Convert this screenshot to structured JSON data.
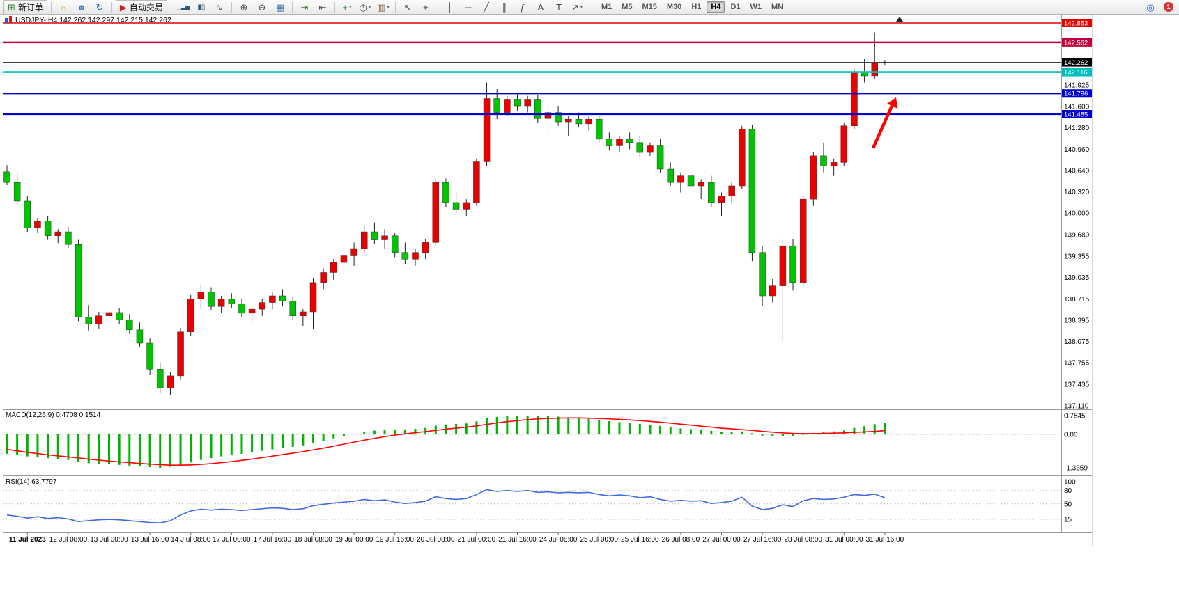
{
  "toolbar": {
    "items": [
      {
        "name": "new-order-button",
        "button": true,
        "icon_name": "new-order-icon",
        "glyph": "⊞",
        "color": "#2a7f2a",
        "label": "新订单"
      },
      {
        "sep": true
      },
      {
        "name": "chart-wizard-icon",
        "glyph": "☼",
        "color": "#dd9900"
      },
      {
        "name": "community-icon",
        "glyph": "☻",
        "color": "#4a7ab5"
      },
      {
        "name": "refresh-icon",
        "glyph": "↻",
        "color": "#3a6ea5"
      },
      {
        "sep": true
      },
      {
        "name": "autotrading-button",
        "button": true,
        "icon_name": "autotrading-icon",
        "glyph": "▶",
        "color": "#cc2020",
        "label": "自动交易"
      },
      {
        "sep": true
      },
      {
        "name": "bar-chart-icon",
        "glyph": "▁▃▅",
        "color": "#33536e",
        "size": 8
      },
      {
        "name": "candlestick-chart-icon",
        "glyph": "▮▯",
        "color": "#33536e",
        "size": 10
      },
      {
        "name": "line-chart-icon",
        "glyph": "∿",
        "color": "#33536e"
      },
      {
        "sep": true
      },
      {
        "name": "zoom-in-icon",
        "glyph": "⊕"
      },
      {
        "name": "zoom-out-icon",
        "glyph": "⊖"
      },
      {
        "name": "tile-windows-icon",
        "glyph": "▦",
        "color": "#3a6ea5"
      },
      {
        "sep": true
      },
      {
        "name": "auto-scroll-icon",
        "glyph": "⇥",
        "color": "#2a7f2a"
      },
      {
        "name": "chart-shift-icon",
        "glyph": "⇤"
      },
      {
        "sep": true
      },
      {
        "name": "indicators-icon",
        "glyph": "+",
        "color": "#2a7f2a",
        "caret": true
      },
      {
        "name": "periods-icon",
        "glyph": "◷",
        "caret": true
      },
      {
        "name": "templates-icon",
        "glyph": "▥",
        "color": "#8a6d3b",
        "caret": true
      },
      {
        "sep": true
      },
      {
        "name": "cursor-icon",
        "glyph": "↖"
      },
      {
        "name": "crosshair-icon",
        "glyph": "⌖"
      },
      {
        "sep": true
      },
      {
        "name": "vertical-line-icon",
        "glyph": "│"
      },
      {
        "name": "horizontal-line-icon",
        "glyph": "─"
      },
      {
        "name": "trendline-icon",
        "glyph": "╱"
      },
      {
        "name": "channel-icon",
        "glyph": "∥"
      },
      {
        "name": "fibonacci-icon",
        "glyph": "ƒ"
      },
      {
        "name": "text-icon",
        "glyph": "A"
      },
      {
        "name": "label-icon",
        "glyph": "T"
      },
      {
        "name": "arrows-icon",
        "glyph": "↗",
        "caret": true
      },
      {
        "sep": true
      }
    ],
    "timeframes": [
      "M1",
      "M5",
      "M15",
      "M30",
      "H1",
      "H4",
      "D1",
      "W1",
      "MN"
    ],
    "active_timeframe": "H4",
    "right_items": [
      {
        "name": "search-icon",
        "glyph": "◎",
        "color": "#2a62c9"
      }
    ],
    "notification_count": "1"
  },
  "chart": {
    "title": "USDJPY-.H4 142.262 142.297 142.215 142.262",
    "symbol": "USDJPY-",
    "period": "H4"
  },
  "indicators": {
    "macd": {
      "text": "MACD(12,26,9) 0.4708 0.1514",
      "scale": [
        "0.7545",
        "0.00",
        "-1.3359"
      ]
    },
    "rsi": {
      "text": "RSI(14) 63.7797",
      "levels": [
        "100",
        "80",
        "50",
        "15"
      ]
    }
  },
  "price_axis": {
    "values": [
      141.925,
      141.6,
      141.28,
      140.96,
      140.64,
      140.32,
      140.0,
      139.68,
      139.355,
      139.035,
      138.715,
      138.395,
      138.075,
      137.755,
      137.435,
      137.11
    ]
  },
  "chart_data": {
    "type": "candlestick",
    "title": "USDJPY- H4",
    "colors": {
      "up": "#eb0000",
      "down": "#00c400",
      "wick": "#222222",
      "macd_hist": "#00b400",
      "macd_signal": "#ff0000",
      "rsi_line": "#4169e1"
    },
    "candles": [
      [
        140.62,
        140.72,
        140.42,
        140.46
      ],
      [
        140.46,
        140.6,
        140.12,
        140.18
      ],
      [
        140.18,
        140.26,
        139.72,
        139.78
      ],
      [
        139.78,
        139.93,
        139.7,
        139.88
      ],
      [
        139.88,
        139.96,
        139.6,
        139.66
      ],
      [
        139.66,
        139.76,
        139.55,
        139.72
      ],
      [
        139.72,
        139.79,
        139.48,
        139.53
      ],
      [
        139.53,
        139.6,
        138.38,
        138.44
      ],
      [
        138.44,
        138.62,
        138.24,
        138.34
      ],
      [
        138.34,
        138.52,
        138.27,
        138.46
      ],
      [
        138.46,
        138.56,
        138.3,
        138.51
      ],
      [
        138.51,
        138.58,
        138.34,
        138.4
      ],
      [
        138.4,
        138.49,
        138.19,
        138.25
      ],
      [
        138.25,
        138.36,
        137.99,
        138.05
      ],
      [
        138.05,
        138.13,
        137.58,
        137.66
      ],
      [
        137.66,
        137.76,
        137.3,
        137.38
      ],
      [
        137.38,
        137.62,
        137.27,
        137.56
      ],
      [
        137.56,
        138.28,
        137.5,
        138.22
      ],
      [
        138.22,
        138.77,
        138.16,
        138.71
      ],
      [
        138.71,
        138.92,
        138.56,
        138.82
      ],
      [
        138.82,
        138.88,
        138.54,
        138.6
      ],
      [
        138.6,
        138.76,
        138.5,
        138.71
      ],
      [
        138.71,
        138.8,
        138.58,
        138.64
      ],
      [
        138.64,
        138.72,
        138.44,
        138.5
      ],
      [
        138.5,
        138.61,
        138.36,
        138.56
      ],
      [
        138.56,
        138.71,
        138.46,
        138.66
      ],
      [
        138.66,
        138.81,
        138.56,
        138.76
      ],
      [
        138.76,
        138.86,
        138.6,
        138.68
      ],
      [
        138.68,
        138.74,
        138.4,
        138.46
      ],
      [
        138.46,
        138.56,
        138.3,
        138.52
      ],
      [
        138.52,
        139.02,
        138.26,
        138.96
      ],
      [
        138.96,
        139.17,
        138.86,
        139.11
      ],
      [
        139.11,
        139.31,
        139.0,
        139.26
      ],
      [
        139.26,
        139.41,
        139.11,
        139.36
      ],
      [
        139.36,
        139.56,
        139.21,
        139.47
      ],
      [
        139.47,
        139.81,
        139.41,
        139.72
      ],
      [
        139.72,
        139.86,
        139.54,
        139.6
      ],
      [
        139.6,
        139.76,
        139.46,
        139.66
      ],
      [
        139.66,
        139.71,
        139.34,
        139.41
      ],
      [
        139.41,
        139.56,
        139.24,
        139.31
      ],
      [
        139.31,
        139.46,
        139.21,
        139.41
      ],
      [
        139.41,
        139.61,
        139.31,
        139.56
      ],
      [
        139.56,
        140.52,
        139.51,
        140.46
      ],
      [
        140.46,
        140.52,
        140.09,
        140.16
      ],
      [
        140.16,
        140.31,
        139.99,
        140.06
      ],
      [
        140.06,
        140.21,
        139.96,
        140.16
      ],
      [
        140.16,
        140.82,
        140.11,
        140.77
      ],
      [
        140.77,
        141.96,
        140.71,
        141.72
      ],
      [
        141.72,
        141.86,
        141.41,
        141.51
      ],
      [
        141.51,
        141.76,
        141.46,
        141.71
      ],
      [
        141.71,
        141.81,
        141.54,
        141.61
      ],
      [
        141.61,
        141.76,
        141.51,
        141.71
      ],
      [
        141.71,
        141.77,
        141.36,
        141.42
      ],
      [
        141.42,
        141.56,
        141.21,
        141.51
      ],
      [
        141.51,
        141.61,
        141.31,
        141.37
      ],
      [
        141.37,
        141.46,
        141.16,
        141.41
      ],
      [
        141.41,
        141.51,
        141.29,
        141.34
      ],
      [
        141.34,
        141.46,
        141.24,
        141.41
      ],
      [
        141.41,
        141.46,
        141.06,
        141.11
      ],
      [
        141.11,
        141.21,
        140.94,
        141.01
      ],
      [
        141.01,
        141.16,
        140.91,
        141.11
      ],
      [
        141.11,
        141.21,
        140.96,
        141.06
      ],
      [
        141.06,
        141.16,
        140.84,
        140.91
      ],
      [
        140.91,
        141.06,
        140.86,
        141.01
      ],
      [
        141.01,
        141.11,
        140.61,
        140.66
      ],
      [
        140.66,
        140.76,
        140.41,
        140.46
      ],
      [
        140.46,
        140.61,
        140.31,
        140.56
      ],
      [
        140.56,
        140.66,
        140.36,
        140.41
      ],
      [
        140.41,
        140.51,
        140.21,
        140.46
      ],
      [
        140.46,
        140.56,
        140.09,
        140.16
      ],
      [
        140.16,
        140.31,
        139.96,
        140.26
      ],
      [
        140.26,
        140.46,
        140.16,
        140.41
      ],
      [
        140.41,
        141.31,
        140.36,
        141.26
      ],
      [
        141.26,
        141.32,
        139.28,
        139.41
      ],
      [
        139.41,
        139.51,
        138.61,
        138.76
      ],
      [
        138.76,
        139.01,
        138.66,
        138.91
      ],
      [
        138.91,
        139.61,
        138.06,
        139.51
      ],
      [
        139.51,
        139.61,
        138.84,
        138.96
      ],
      [
        138.96,
        140.26,
        138.91,
        140.21
      ],
      [
        140.21,
        140.91,
        140.11,
        140.86
      ],
      [
        140.86,
        141.06,
        140.61,
        140.71
      ],
      [
        140.71,
        140.81,
        140.56,
        140.76
      ],
      [
        140.76,
        141.36,
        140.71,
        141.31
      ],
      [
        141.31,
        142.16,
        141.26,
        142.11
      ],
      [
        142.11,
        142.31,
        141.96,
        142.06
      ],
      [
        142.06,
        142.71,
        142.01,
        142.26
      ],
      [
        142.262,
        142.297,
        142.215,
        142.262
      ]
    ],
    "hlines": [
      {
        "price": 142.853,
        "label": "142.853",
        "color": "#e60000",
        "width": 1.4
      },
      {
        "price": 142.562,
        "label": "142.562",
        "color": "#c2003c",
        "width": 2.4
      },
      {
        "price": 142.116,
        "label": "142.116",
        "color": "#00bfbf",
        "width": 2.6
      },
      {
        "price": 141.796,
        "label": "141.796",
        "color": "#0000cc",
        "width": 2.2
      },
      {
        "price": 141.485,
        "label": "141.485",
        "color": "#0000cc",
        "width": 2.2
      }
    ],
    "current": {
      "price": 142.262,
      "label": "142.262",
      "color": "#000000"
    },
    "macd_histogram": [
      -0.78,
      -0.82,
      -0.88,
      -0.92,
      -0.95,
      -0.98,
      -1.02,
      -1.1,
      -1.15,
      -1.18,
      -1.2,
      -1.22,
      -1.25,
      -1.28,
      -1.31,
      -1.336,
      -1.3,
      -1.22,
      -1.12,
      -1.02,
      -0.95,
      -0.88,
      -0.82,
      -0.78,
      -0.72,
      -0.66,
      -0.6,
      -0.55,
      -0.5,
      -0.44,
      -0.36,
      -0.26,
      -0.16,
      -0.07,
      0.02,
      0.1,
      0.15,
      0.18,
      0.19,
      0.2,
      0.22,
      0.26,
      0.35,
      0.4,
      0.42,
      0.44,
      0.52,
      0.66,
      0.7,
      0.73,
      0.74,
      0.754,
      0.75,
      0.73,
      0.71,
      0.68,
      0.65,
      0.62,
      0.58,
      0.53,
      0.49,
      0.46,
      0.42,
      0.39,
      0.34,
      0.28,
      0.24,
      0.21,
      0.18,
      0.14,
      0.11,
      0.1,
      0.12,
      0.05,
      -0.05,
      -0.08,
      -0.06,
      -0.08,
      0.0,
      0.06,
      0.1,
      0.12,
      0.16,
      0.26,
      0.33,
      0.41,
      0.4708
    ],
    "macd_signal": [
      -0.6,
      -0.66,
      -0.72,
      -0.77,
      -0.82,
      -0.86,
      -0.9,
      -0.94,
      -0.99,
      -1.03,
      -1.07,
      -1.1,
      -1.13,
      -1.16,
      -1.19,
      -1.21,
      -1.23,
      -1.23,
      -1.22,
      -1.2,
      -1.17,
      -1.13,
      -1.09,
      -1.04,
      -0.99,
      -0.93,
      -0.87,
      -0.81,
      -0.75,
      -0.69,
      -0.62,
      -0.55,
      -0.47,
      -0.39,
      -0.31,
      -0.23,
      -0.16,
      -0.09,
      -0.03,
      0.02,
      0.07,
      0.11,
      0.16,
      0.21,
      0.25,
      0.29,
      0.34,
      0.4,
      0.46,
      0.51,
      0.55,
      0.59,
      0.62,
      0.64,
      0.65,
      0.66,
      0.66,
      0.65,
      0.64,
      0.62,
      0.6,
      0.58,
      0.55,
      0.52,
      0.49,
      0.45,
      0.41,
      0.37,
      0.33,
      0.29,
      0.25,
      0.22,
      0.19,
      0.16,
      0.12,
      0.09,
      0.06,
      0.04,
      0.03,
      0.03,
      0.04,
      0.05,
      0.06,
      0.08,
      0.1,
      0.12,
      0.1514
    ],
    "rsi": [
      25,
      22,
      18,
      21,
      17,
      19,
      16,
      10,
      12,
      14,
      15,
      14,
      12,
      10,
      8,
      7,
      12,
      25,
      34,
      38,
      36,
      38,
      37,
      35,
      37,
      39,
      41,
      40,
      37,
      39,
      46,
      49,
      52,
      54,
      56,
      60,
      57,
      59,
      54,
      51,
      53,
      56,
      66,
      62,
      60,
      62,
      71,
      82,
      78,
      80,
      78,
      80,
      76,
      77,
      75,
      76,
      75,
      76,
      71,
      68,
      70,
      68,
      64,
      66,
      60,
      56,
      58,
      56,
      57,
      51,
      53,
      56,
      65,
      45,
      37,
      40,
      48,
      44,
      57,
      62,
      60,
      61,
      65,
      71,
      69,
      72,
      63.78
    ],
    "time_labels": [
      {
        "i": 2,
        "t": "11 Jul 2023"
      },
      {
        "i": 6,
        "t": "12 Jul 08:00"
      },
      {
        "i": 10,
        "t": "13 Jul 00:00"
      },
      {
        "i": 14,
        "t": "13 Jul 16:00"
      },
      {
        "i": 18,
        "t": "14 J ul 08:00"
      },
      {
        "i": 22,
        "t": "17 Jul 00:00"
      },
      {
        "i": 26,
        "t": "17 Jul 16:00"
      },
      {
        "i": 30,
        "t": "18 Jul 08:00"
      },
      {
        "i": 34,
        "t": "19 Jul 00:00"
      },
      {
        "i": 38,
        "t": "19 Jul 16:00"
      },
      {
        "i": 42,
        "t": "20 Jul 08:00"
      },
      {
        "i": 46,
        "t": "21 Jul 00:00"
      },
      {
        "i": 50,
        "t": "21 Jul 16:00"
      },
      {
        "i": 54,
        "t": "24 Jul 08:00"
      },
      {
        "i": 58,
        "t": "25 Jul 00:00"
      },
      {
        "i": 62,
        "t": "25 Jul 16:00"
      },
      {
        "i": 66,
        "t": "26 Jul 08:00"
      },
      {
        "i": 70,
        "t": "27 Jul 00:00"
      },
      {
        "i": 74,
        "t": "27 Jul 16:00"
      },
      {
        "i": 78,
        "t": "28 Jul 08:00"
      },
      {
        "i": 82,
        "t": "31 Jul 00:00"
      },
      {
        "i": 86,
        "t": "31 Jul 16:00"
      }
    ]
  },
  "annotations": {
    "arrow_color": "#ff0000"
  }
}
